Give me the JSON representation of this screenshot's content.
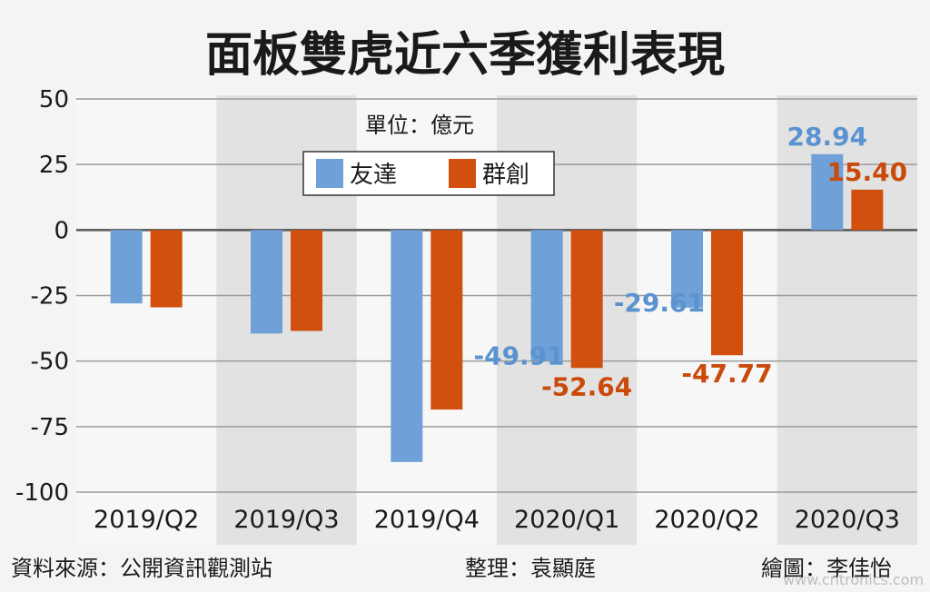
{
  "title": "面板雙虎近六季獲利表現",
  "unit_label": "單位：億元",
  "footer": {
    "source": "資料來源：公開資訊觀測站",
    "editor": "整理：袁顯庭",
    "illustrator": "繪圖：李佳怡",
    "watermark": "www.cntronics.com"
  },
  "colors": {
    "series1": "#6fa1d8",
    "series2": "#d1500e",
    "label1": "#5b93d0",
    "label2": "#c94a0a",
    "band_dark": "#e2e2e2",
    "band_light": "#f7f7f7"
  },
  "chart_data": {
    "type": "bar",
    "title": "面板雙虎近六季獲利表現",
    "ylabel": "單位：億元",
    "ylim": [
      -100,
      50
    ],
    "yticks": [
      50,
      25,
      0,
      -25,
      -50,
      -75,
      -100
    ],
    "grid": true,
    "legend": "top-center",
    "categories": [
      "2019/Q2",
      "2019/Q3",
      "2019/Q4",
      "2020/Q1",
      "2020/Q2",
      "2020/Q3"
    ],
    "series": [
      {
        "name": "友達",
        "values": [
          -28,
          -39.5,
          -88.5,
          -49.91,
          -29.61,
          28.94
        ],
        "labels": [
          "",
          "",
          "",
          "-49.91",
          "-29.61",
          "28.94"
        ]
      },
      {
        "name": "群創",
        "values": [
          -29.5,
          -38.5,
          -68.5,
          -52.64,
          -47.77,
          15.4
        ],
        "labels": [
          "",
          "",
          "",
          "-52.64",
          "-47.77",
          "15.40"
        ]
      }
    ]
  }
}
